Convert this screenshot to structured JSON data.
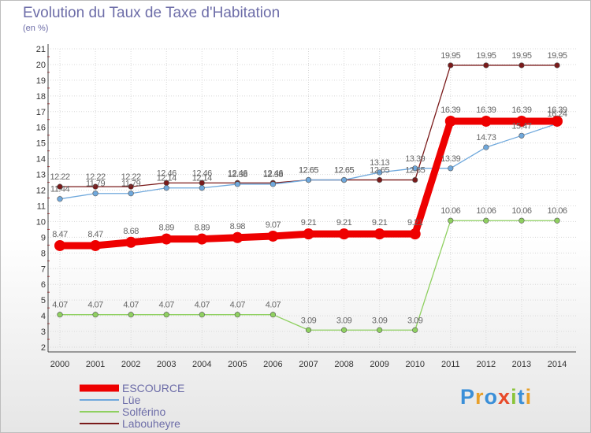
{
  "header": {
    "title": "Evolution du Taux de Taxe d'Habitation",
    "subtitle": "(en %)"
  },
  "logo": {
    "letters": [
      {
        "ch": "P",
        "color": "#3a8fd8"
      },
      {
        "ch": "r",
        "color": "#e8a02a"
      },
      {
        "ch": "o",
        "color": "#3a8fd8"
      },
      {
        "ch": "x",
        "color": "#e84a2a"
      },
      {
        "ch": "i",
        "color": "#8ac43a"
      },
      {
        "ch": "t",
        "color": "#3a8fd8"
      },
      {
        "ch": "i",
        "color": "#e8a02a"
      }
    ]
  },
  "chart_data": {
    "type": "line",
    "title": "Evolution du Taux de Taxe d'Habitation",
    "ylabel": "(en %)",
    "ylim": [
      2,
      21
    ],
    "yticks": [
      2,
      3,
      4,
      5,
      6,
      7,
      8,
      9,
      10,
      11,
      12,
      13,
      14,
      15,
      16,
      17,
      18,
      19,
      20,
      21
    ],
    "grid": true,
    "legend": "bottom-left",
    "x": [
      "2000",
      "2001",
      "2002",
      "2003",
      "2004",
      "2005",
      "2006",
      "2007",
      "2008",
      "2009",
      "2010",
      "2011",
      "2012",
      "2013",
      "2014"
    ],
    "series": [
      {
        "name": "Labouheyre",
        "color": "#7a1a1a",
        "values": [
          12.22,
          12.22,
          12.22,
          12.46,
          12.46,
          12.46,
          12.46,
          12.65,
          12.65,
          12.65,
          12.65,
          19.95,
          19.95,
          19.95,
          19.95
        ],
        "labels": [
          "12.22",
          "12.22",
          "12.22",
          "12.46",
          "12.46",
          "12.46",
          "12.46",
          "12.65",
          "12.65",
          "12.65",
          "12.65",
          "19.95",
          "19.95",
          "19.95",
          "19.95"
        ]
      },
      {
        "name": "Solférino",
        "color": "#8fd060",
        "values": [
          4.07,
          4.07,
          4.07,
          4.07,
          4.07,
          4.07,
          4.07,
          3.09,
          3.09,
          3.09,
          3.09,
          10.06,
          10.06,
          10.06,
          10.06
        ],
        "labels": [
          "4.07",
          "4.07",
          "4.07",
          "4.07",
          "4.07",
          "4.07",
          "4.07",
          "3.09",
          "3.09",
          "3.09",
          "3.09",
          "10.06",
          "10.06",
          "10.06",
          "10.06"
        ]
      },
      {
        "name": "Lüe",
        "color": "#6fa8dc",
        "values": [
          11.44,
          11.79,
          11.79,
          12.14,
          12.14,
          12.38,
          12.38,
          12.65,
          12.65,
          13.13,
          13.39,
          13.39,
          14.73,
          15.47,
          16.24
        ],
        "labels": [
          "11.44",
          "11.79",
          "11.79",
          "12.14",
          "12.14",
          "12.38",
          "12.38",
          "12.65",
          "12.65",
          "13.13",
          "13.39",
          "13.39",
          "14.73",
          "15.47",
          "16.24"
        ]
      },
      {
        "name": "ESCOURCE",
        "color": "#ee0000",
        "values": [
          8.47,
          8.47,
          8.68,
          8.89,
          8.89,
          8.98,
          9.07,
          9.21,
          9.21,
          9.21,
          9.21,
          16.39,
          16.39,
          16.39,
          16.39
        ],
        "labels": [
          "8.47",
          "8.47",
          "8.68",
          "8.89",
          "8.89",
          "8.98",
          "9.07",
          "9.21",
          "9.21",
          "9.21",
          "9.21",
          "16.39",
          "16.39",
          "16.39",
          "16.39"
        ]
      }
    ]
  }
}
